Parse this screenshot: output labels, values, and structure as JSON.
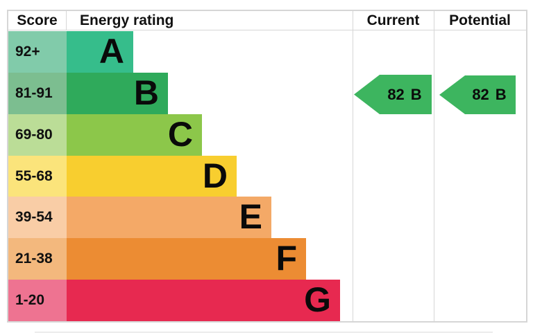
{
  "header": {
    "score": "Score",
    "energy_rating": "Energy rating",
    "current": "Current",
    "potential": "Potential"
  },
  "chart_data": {
    "type": "bar",
    "title": "Energy efficiency rating chart (EPC)",
    "categories": [
      "A",
      "B",
      "C",
      "D",
      "E",
      "F",
      "G"
    ],
    "bands": [
      {
        "grade": "A",
        "score_range": "92+",
        "bar_color": "#36bd8b",
        "score_bg_color": "#81cbaa"
      },
      {
        "grade": "B",
        "score_range": "81-91",
        "bar_color": "#2faa5b",
        "score_bg_color": "#7cbe90"
      },
      {
        "grade": "C",
        "score_range": "69-80",
        "bar_color": "#8cc74a",
        "score_bg_color": "#bbdd97"
      },
      {
        "grade": "D",
        "score_range": "55-68",
        "bar_color": "#f8ce2f",
        "score_bg_color": "#fbe47b"
      },
      {
        "grade": "E",
        "score_range": "39-54",
        "bar_color": "#f4a967",
        "score_bg_color": "#f9cda6"
      },
      {
        "grade": "F",
        "score_range": "21-38",
        "bar_color": "#ec8c33",
        "score_bg_color": "#f3b87d"
      },
      {
        "grade": "G",
        "score_range": "1-20",
        "bar_color": "#e72950",
        "score_bg_color": "#ee7391"
      }
    ],
    "current": {
      "score": "82",
      "grade": "B"
    },
    "potential": {
      "score": "82",
      "grade": "B"
    },
    "legend_position": "none",
    "grid": false
  },
  "colors": {
    "arrow_fill": "#3db55f",
    "border": "#d6d6d6",
    "text": "#0a0a0a"
  }
}
